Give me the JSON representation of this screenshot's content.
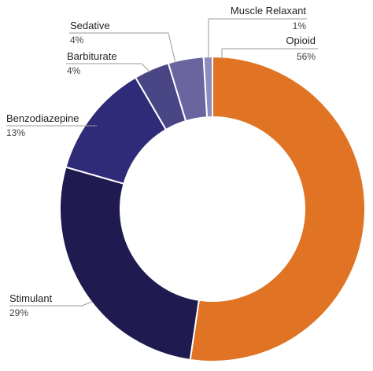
{
  "chart_data": {
    "type": "pie",
    "variant": "donut",
    "title": "",
    "slices": [
      {
        "name": "Opioid",
        "value": 56,
        "label": "56%",
        "color": "#e07424"
      },
      {
        "name": "Stimulant",
        "value": 29,
        "label": "29%",
        "color": "#1f1a4f"
      },
      {
        "name": "Benzodiazepine",
        "value": 13,
        "label": "13%",
        "color": "#302b79"
      },
      {
        "name": "Barbiturate",
        "value": 4,
        "label": "4%",
        "color": "#4a4584"
      },
      {
        "name": "Sedative",
        "value": 4,
        "label": "4%",
        "color": "#6a659e"
      },
      {
        "name": "Muscle Relaxant",
        "value": 1,
        "label": "1%",
        "color": "#8f8bbd"
      }
    ]
  }
}
